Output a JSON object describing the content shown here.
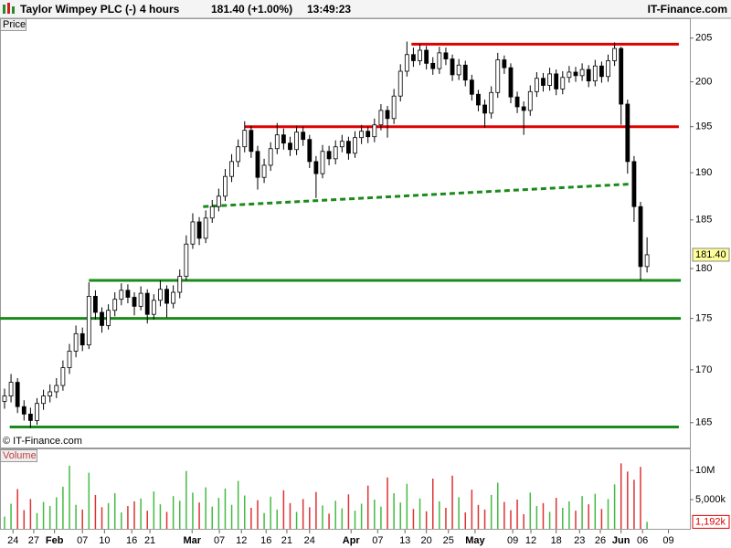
{
  "header": {
    "title": "Taylor Wimpey PLC (-)",
    "interval": "4 hours",
    "quote": "181.40 (+1.00%)",
    "time": "13:49:23",
    "brand": "IT-Finance.com"
  },
  "chart_data": [
    {
      "type": "candlestick",
      "label": "Price",
      "annotation": "© IT-Finance.com",
      "log": true,
      "up_color": "#ffffff",
      "down_color": "#000000",
      "x": [
        0,
        1,
        2,
        3,
        4,
        5,
        6,
        7,
        8,
        9,
        10,
        11,
        12,
        13,
        14,
        15,
        16,
        17,
        18,
        19,
        20,
        21,
        22,
        23,
        24,
        25,
        26,
        27,
        28,
        29,
        30,
        31,
        32,
        33,
        34,
        35,
        36,
        37,
        38,
        39,
        40,
        41,
        42,
        43,
        44,
        45,
        46,
        47,
        48,
        49,
        50,
        51,
        52,
        53,
        54,
        55,
        56,
        57,
        58,
        59,
        60,
        61,
        62,
        63,
        64,
        65,
        66,
        67,
        68,
        69,
        70,
        71,
        72,
        73,
        74,
        75,
        76,
        77,
        78,
        79,
        80,
        81,
        82,
        83,
        84,
        85,
        86,
        87,
        88,
        89,
        90,
        91,
        92,
        93,
        94,
        95,
        96,
        97,
        98,
        99
      ],
      "open": [
        167.0,
        167.5,
        168.8,
        166.5,
        165.8,
        165.2,
        166.8,
        167.5,
        167.9,
        168.5,
        170.2,
        171.8,
        173.5,
        172.4,
        177.2,
        175.6,
        174.3,
        175.8,
        176.9,
        177.8,
        177.1,
        176.2,
        177.5,
        175.4,
        176.8,
        177.9,
        176.5,
        177.6,
        179.2,
        182.5,
        184.8,
        183.1,
        185.2,
        186.4,
        187.5,
        189.6,
        191.2,
        192.8,
        194.6,
        192.3,
        189.5,
        190.8,
        192.6,
        194.1,
        193.2,
        192.5,
        194.4,
        193.6,
        191.2,
        189.9,
        192.3,
        191.5,
        192.8,
        193.4,
        192.1,
        193.8,
        194.5,
        193.9,
        195.2,
        196.8,
        195.9,
        198.4,
        201.2,
        203.1,
        202.4,
        203.6,
        202.1,
        201.5,
        203.3,
        202.6,
        200.8,
        201.9,
        200.2,
        198.6,
        197.4,
        196.5,
        198.8,
        202.5,
        201.6,
        198.3,
        197.2,
        196.8,
        198.9,
        200.4,
        199.6,
        200.9,
        199.2,
        200.5,
        201.1,
        200.7,
        201.4,
        200.1,
        201.8,
        200.6,
        202.4,
        203.8,
        197.5,
        191.2,
        186.4,
        180.2
      ],
      "high": [
        168.2,
        169.6,
        169.2,
        167.1,
        166.4,
        167.3,
        168.1,
        168.6,
        169.2,
        170.9,
        172.5,
        174.3,
        174.1,
        178.6,
        177.8,
        176.1,
        176.4,
        177.6,
        178.5,
        178.4,
        177.6,
        178.2,
        177.9,
        177.4,
        178.8,
        178.3,
        178.3,
        179.9,
        183.4,
        185.7,
        185.3,
        186.0,
        187.1,
        188.3,
        190.4,
        192.0,
        193.6,
        195.6,
        195.1,
        192.9,
        191.5,
        193.3,
        195.4,
        194.8,
        193.9,
        195.1,
        195.0,
        194.1,
        191.8,
        193.0,
        192.9,
        193.5,
        194.1,
        193.9,
        194.5,
        195.2,
        195.0,
        195.9,
        197.5,
        197.3,
        199.2,
        202.0,
        204.6,
        203.9,
        204.3,
        204.1,
        202.8,
        204.0,
        203.9,
        203.1,
        202.6,
        202.4,
        200.8,
        199.1,
        198.0,
        199.5,
        203.3,
        203.0,
        202.1,
        198.9,
        197.8,
        199.6,
        201.1,
        201.0,
        201.6,
        201.4,
        201.2,
        201.8,
        201.7,
        202.1,
        201.9,
        202.5,
        202.3,
        203.1,
        204.5,
        204.0,
        198.0,
        191.8,
        186.9,
        183.2
      ],
      "low": [
        166.3,
        166.9,
        165.9,
        165.2,
        164.5,
        164.8,
        166.2,
        166.9,
        167.3,
        168.0,
        169.6,
        171.2,
        171.8,
        172.0,
        174.9,
        173.6,
        173.9,
        175.2,
        176.3,
        176.5,
        175.3,
        175.8,
        174.5,
        174.9,
        176.2,
        175.1,
        176.0,
        177.0,
        178.8,
        182.0,
        182.4,
        182.6,
        184.7,
        185.9,
        187.0,
        189.0,
        190.6,
        192.2,
        191.6,
        188.2,
        188.9,
        190.2,
        192.0,
        192.5,
        191.8,
        191.9,
        192.9,
        190.5,
        187.3,
        189.4,
        190.8,
        190.9,
        192.2,
        191.4,
        191.6,
        193.1,
        193.2,
        193.3,
        194.6,
        193.8,
        195.3,
        197.8,
        200.6,
        201.7,
        201.9,
        201.4,
        200.8,
        200.9,
        201.9,
        200.1,
        200.2,
        199.5,
        197.9,
        196.7,
        194.9,
        195.9,
        198.2,
        200.9,
        197.6,
        196.5,
        194.1,
        196.2,
        198.3,
        198.9,
        199.0,
        198.5,
        198.6,
        199.9,
        200.0,
        200.1,
        199.4,
        199.5,
        199.9,
        200.0,
        201.8,
        195.2,
        189.9,
        184.8,
        178.8,
        179.6
      ],
      "close": [
        167.5,
        168.8,
        166.5,
        165.8,
        165.2,
        166.8,
        167.5,
        167.9,
        168.5,
        170.2,
        171.8,
        173.5,
        172.4,
        177.2,
        175.6,
        174.3,
        175.8,
        176.9,
        177.8,
        177.1,
        176.2,
        177.5,
        175.4,
        176.8,
        177.9,
        176.5,
        177.6,
        179.2,
        182.5,
        184.8,
        183.1,
        185.2,
        186.4,
        187.5,
        189.6,
        191.2,
        192.8,
        194.6,
        192.3,
        189.5,
        190.8,
        192.6,
        194.1,
        193.2,
        192.5,
        194.4,
        193.6,
        191.2,
        189.9,
        192.3,
        191.5,
        192.8,
        193.4,
        192.1,
        193.8,
        194.5,
        193.9,
        195.2,
        196.8,
        195.9,
        198.4,
        201.2,
        203.1,
        202.4,
        203.6,
        202.1,
        201.5,
        203.3,
        202.6,
        200.8,
        201.9,
        200.2,
        198.6,
        197.4,
        196.5,
        198.8,
        202.5,
        201.6,
        198.3,
        197.2,
        196.8,
        198.9,
        200.4,
        199.6,
        200.9,
        199.2,
        200.5,
        201.1,
        200.7,
        201.4,
        200.1,
        201.8,
        200.6,
        202.4,
        203.8,
        197.5,
        191.2,
        186.4,
        180.2,
        181.4
      ],
      "xlim": [
        -0.7,
        105.6
      ],
      "ylim": [
        162.7,
        207.2
      ],
      "yticks": [
        165,
        170,
        175,
        180,
        185,
        190,
        195,
        200,
        205
      ],
      "last": {
        "value": 181.4,
        "label": "181.40",
        "color": "#ffff99"
      },
      "lines": [
        {
          "color": "#e00000",
          "dash": false,
          "x": [
            62.7,
            103.9
          ],
          "y": [
            204.3,
            204.3
          ]
        },
        {
          "color": "#e00000",
          "dash": false,
          "x": [
            37.0,
            103.9
          ],
          "y": [
            195.0,
            195.0
          ]
        },
        {
          "color": "#1a8a1a",
          "dash": true,
          "x": [
            30.6,
            96.8
          ],
          "y": [
            186.4,
            188.8
          ]
        },
        {
          "color": "#1a8a1a",
          "dash": false,
          "x": [
            13.0,
            104.2
          ],
          "y": [
            178.8,
            178.8
          ]
        },
        {
          "color": "#1a8a1a",
          "dash": false,
          "x": [
            -0.7,
            104.2
          ],
          "y": [
            175.0,
            175.0
          ]
        },
        {
          "color": "#1a8a1a",
          "dash": false,
          "x": [
            0.8,
            103.9
          ],
          "y": [
            164.6,
            164.6
          ]
        }
      ]
    },
    {
      "type": "bar",
      "label": "Volume",
      "up_color": "#44bb44",
      "down_color": "#dd3333",
      "x": [
        0,
        1,
        2,
        3,
        4,
        5,
        6,
        7,
        8,
        9,
        10,
        11,
        12,
        13,
        14,
        15,
        16,
        17,
        18,
        19,
        20,
        21,
        22,
        23,
        24,
        25,
        26,
        27,
        28,
        29,
        30,
        31,
        32,
        33,
        34,
        35,
        36,
        37,
        38,
        39,
        40,
        41,
        42,
        43,
        44,
        45,
        46,
        47,
        48,
        49,
        50,
        51,
        52,
        53,
        54,
        55,
        56,
        57,
        58,
        59,
        60,
        61,
        62,
        63,
        64,
        65,
        66,
        67,
        68,
        69,
        70,
        71,
        72,
        73,
        74,
        75,
        76,
        77,
        78,
        79,
        80,
        81,
        82,
        83,
        84,
        85,
        86,
        87,
        88,
        89,
        90,
        91,
        92,
        93,
        94,
        95,
        96,
        97,
        98,
        99
      ],
      "values": [
        2100000,
        4300000,
        6800000,
        3200000,
        5100000,
        2700000,
        4600000,
        3900000,
        5400000,
        7200000,
        10800000,
        4100000,
        3300000,
        9600000,
        5800000,
        3700000,
        4400000,
        6100000,
        2800000,
        3900000,
        4700000,
        5200000,
        3100000,
        6400000,
        4200000,
        2900000,
        5600000,
        4800000,
        9900000,
        6200000,
        4500000,
        7100000,
        3800000,
        5300000,
        6900000,
        4100000,
        8200000,
        5700000,
        3600000,
        4900000,
        2700000,
        5500000,
        3300000,
        6600000,
        4400000,
        2900000,
        5100000,
        3700000,
        6300000,
        4000000,
        2600000,
        4800000,
        3500000,
        5900000,
        3100000,
        4300000,
        7400000,
        5000000,
        3800000,
        8800000,
        6100000,
        4500000,
        7700000,
        3400000,
        5200000,
        3000000,
        8600000,
        4700000,
        3600000,
        9100000,
        5400000,
        2800000,
        6700000,
        4100000,
        3300000,
        5800000,
        7900000,
        4600000,
        3200000,
        5000000,
        2500000,
        6200000,
        3900000,
        4400000,
        2900000,
        5300000,
        3600000,
        4700000,
        3100000,
        5600000,
        4200000,
        6000000,
        3400000,
        5100000,
        7600000,
        11200000,
        9800000,
        8400000,
        10600000,
        1192000
      ],
      "xlim": [
        -0.7,
        105.6
      ],
      "ylim": [
        0,
        13600000
      ],
      "yticks": [
        {
          "value": 5000000,
          "label": "5,000k"
        },
        {
          "value": 10000000,
          "label": "10M"
        }
      ],
      "last": {
        "value": 1192000,
        "label": "1,192k",
        "color": "#dd0000"
      },
      "xticks": [
        {
          "value": 1.3,
          "label": "24"
        },
        {
          "value": 4.5,
          "label": "27"
        },
        {
          "value": 7.7,
          "label": "Feb"
        },
        {
          "value": 12.0,
          "label": "07"
        },
        {
          "value": 15.4,
          "label": "10"
        },
        {
          "value": 19.6,
          "label": "16"
        },
        {
          "value": 22.4,
          "label": "21"
        },
        {
          "value": 28.9,
          "label": "Mar"
        },
        {
          "value": 33.1,
          "label": "07"
        },
        {
          "value": 36.5,
          "label": "12"
        },
        {
          "value": 40.3,
          "label": "16"
        },
        {
          "value": 43.5,
          "label": "21"
        },
        {
          "value": 47.0,
          "label": "24"
        },
        {
          "value": 53.4,
          "label": "Apr"
        },
        {
          "value": 57.5,
          "label": "07"
        },
        {
          "value": 61.7,
          "label": "13"
        },
        {
          "value": 65.0,
          "label": "20"
        },
        {
          "value": 68.4,
          "label": "25"
        },
        {
          "value": 72.5,
          "label": "May"
        },
        {
          "value": 78.3,
          "label": "09"
        },
        {
          "value": 81.1,
          "label": "12"
        },
        {
          "value": 85.0,
          "label": "18"
        },
        {
          "value": 88.6,
          "label": "23"
        },
        {
          "value": 91.8,
          "label": "26"
        },
        {
          "value": 95.0,
          "label": "Jun"
        },
        {
          "value": 98.3,
          "label": "06"
        },
        {
          "value": 102.3,
          "label": "09"
        }
      ]
    }
  ]
}
